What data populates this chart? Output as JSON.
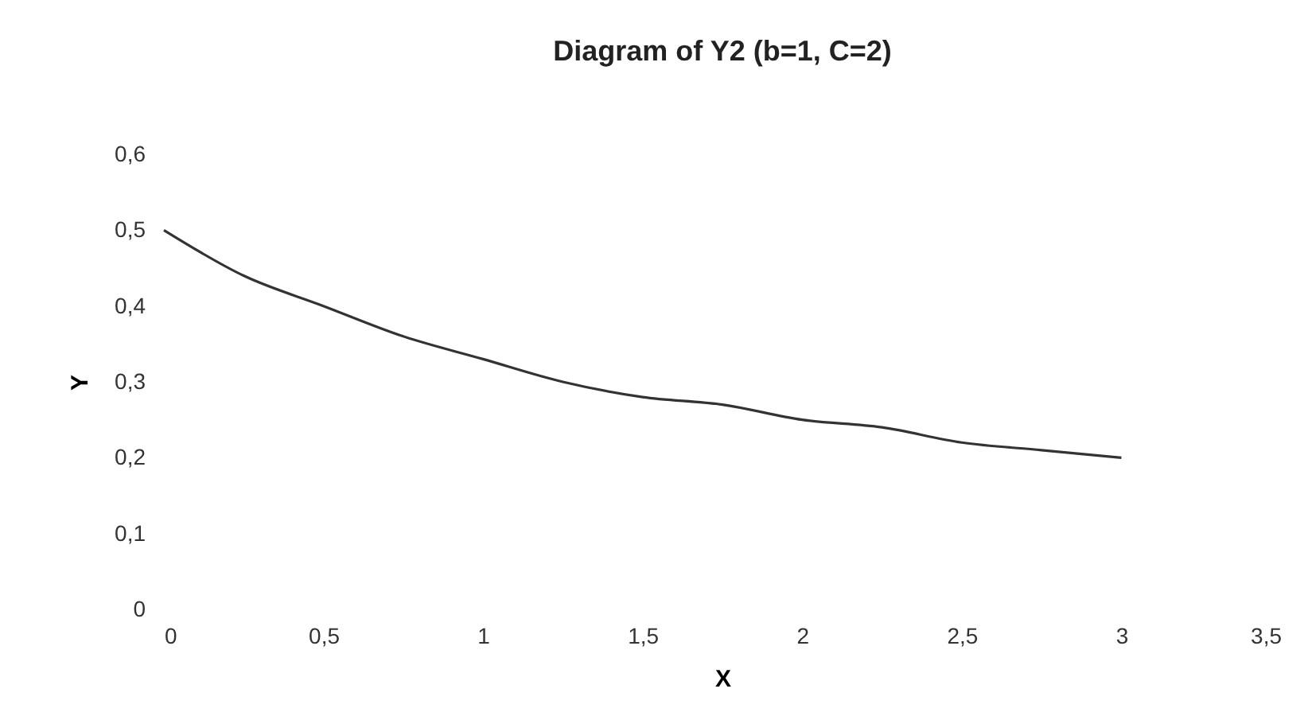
{
  "chart_data": {
    "type": "line",
    "title": "Diagram of Y2 (b=1, C=2)",
    "xlabel": "X",
    "ylabel": "Y",
    "x": [
      0,
      0.25,
      0.5,
      0.75,
      1,
      1.25,
      1.5,
      1.75,
      2,
      2.25,
      2.5,
      2.75,
      3
    ],
    "series": [
      {
        "color": "#333333",
        "values": [
          0.5,
          0.44,
          0.4,
          0.36,
          0.33,
          0.3,
          0.28,
          0.27,
          0.25,
          0.24,
          0.22,
          0.21,
          0.2
        ]
      }
    ],
    "xlim": [
      0,
      3.5
    ],
    "ylim": [
      0,
      0.6
    ],
    "xticks": [
      0,
      {
        "value": 0.5,
        "label": "0,5"
      },
      1,
      {
        "value": 1.5,
        "label": "1,5"
      },
      2,
      {
        "value": 2.5,
        "label": "2,5"
      },
      3,
      {
        "value": 3.5,
        "label": "3,5"
      }
    ],
    "yticks": [
      0,
      {
        "value": 0.1,
        "label": "0,1"
      },
      {
        "value": 0.2,
        "label": "0,2"
      },
      {
        "value": 0.3,
        "label": "0,3"
      },
      {
        "value": 0.4,
        "label": "0,4"
      },
      {
        "value": 0.5,
        "label": "0,5"
      },
      {
        "value": 0.6,
        "label": "0,6"
      }
    ],
    "grid": false,
    "marker": "none",
    "line_style": "solid"
  }
}
